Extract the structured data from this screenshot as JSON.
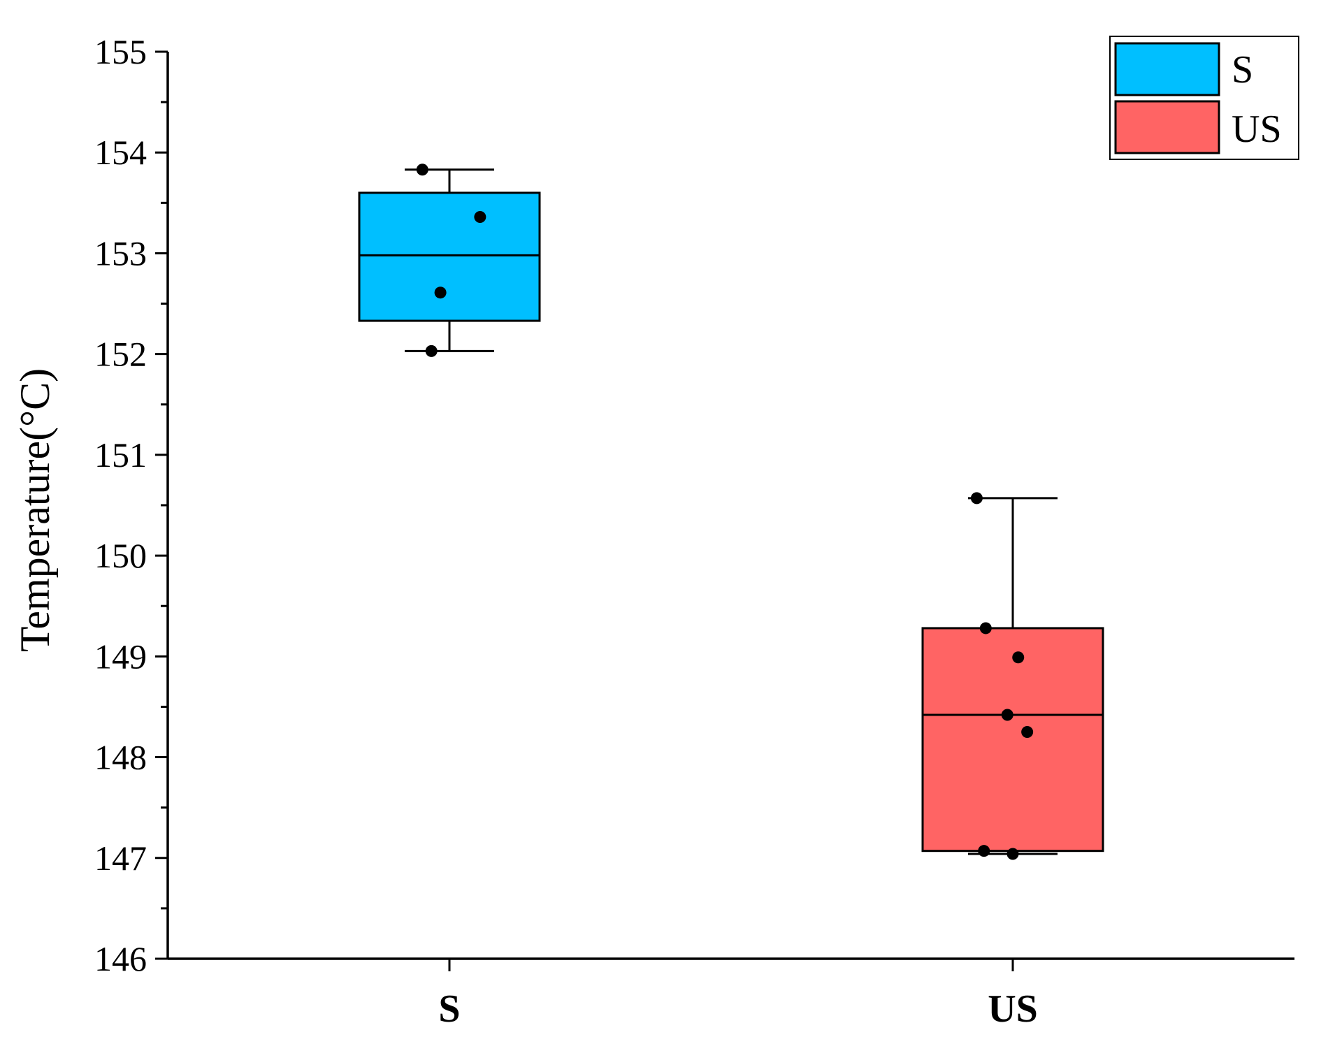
{
  "chart_data": {
    "type": "box",
    "ylabel": "Temperature(°C)",
    "xlabel": "",
    "ylim": [
      146,
      155
    ],
    "yticks": [
      146,
      147,
      148,
      149,
      150,
      151,
      152,
      153,
      154,
      155
    ],
    "categories": [
      "S",
      "US"
    ],
    "legend": {
      "placement": "top-right",
      "entries": [
        {
          "label": "S",
          "color": "#00BFFF"
        },
        {
          "label": "US",
          "color": "#FF6464"
        }
      ]
    },
    "series": [
      {
        "category": "S",
        "color": "#00BFFF",
        "whisker_low": 152.03,
        "q1": 152.33,
        "median": 152.98,
        "q3": 153.6,
        "whisker_high": 153.83,
        "points": [
          {
            "y": 153.83,
            "jitter": -0.15
          },
          {
            "y": 153.36,
            "jitter": 0.17
          },
          {
            "y": 152.61,
            "jitter": -0.05
          },
          {
            "y": 152.03,
            "jitter": -0.1
          }
        ]
      },
      {
        "category": "US",
        "color": "#FF6464",
        "whisker_low": 147.04,
        "q1": 147.07,
        "median": 148.42,
        "q3": 149.28,
        "whisker_high": 150.57,
        "points": [
          {
            "y": 150.57,
            "jitter": -0.2
          },
          {
            "y": 149.28,
            "jitter": -0.15
          },
          {
            "y": 148.99,
            "jitter": 0.03
          },
          {
            "y": 148.42,
            "jitter": -0.03
          },
          {
            "y": 148.25,
            "jitter": 0.08
          },
          {
            "y": 147.07,
            "jitter": -0.16
          },
          {
            "y": 147.04,
            "jitter": 0.0
          }
        ]
      }
    ]
  }
}
